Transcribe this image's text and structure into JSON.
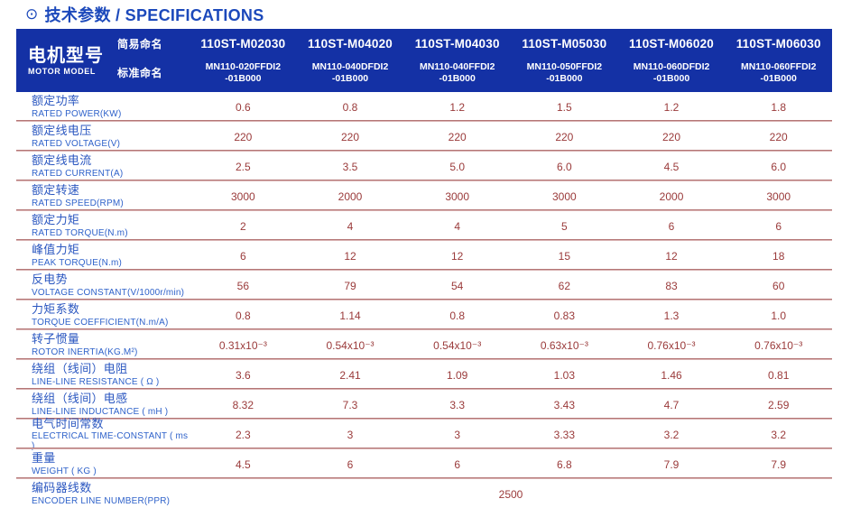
{
  "title": {
    "icon": "⊙",
    "text": "技术参数 / SPECIFICATIONS"
  },
  "colors": {
    "header_bg": "#1431a5",
    "title_blue": "#1c49bb",
    "label_blue": "#2b57c0",
    "value_red": "#9a3a3a",
    "separator_dark": "#a25858",
    "separator_light": "#ebd0d0"
  },
  "table": {
    "model": {
      "zh": "电机型号",
      "en": "MOTOR MODEL"
    },
    "naming": {
      "simple": "简易命名",
      "standard": "标准命名"
    },
    "columns": [
      {
        "simple": "110ST-M02030",
        "standard": "MN110-020FFDI2\n-01B000"
      },
      {
        "simple": "110ST-M04020",
        "standard": "MN110-040DFDI2\n-01B000"
      },
      {
        "simple": "110ST-M04030",
        "standard": "MN110-040FFDI2\n-01B000"
      },
      {
        "simple": "110ST-M05030",
        "standard": "MN110-050FFDI2\n-01B000"
      },
      {
        "simple": "110ST-M06020",
        "standard": "MN110-060DFDI2\n-01B000"
      },
      {
        "simple": "110ST-M06030",
        "standard": "MN110-060FFDI2\n-01B000"
      }
    ],
    "rows": [
      {
        "zh": "额定功率",
        "en": "RATED POWER(KW)",
        "values": [
          "0.6",
          "0.8",
          "1.2",
          "1.5",
          "1.2",
          "1.8"
        ]
      },
      {
        "zh": "额定线电压",
        "en": "RATED VOLTAGE(V)",
        "values": [
          "220",
          "220",
          "220",
          "220",
          "220",
          "220"
        ]
      },
      {
        "zh": "额定线电流",
        "en": "RATED CURRENT(A)",
        "values": [
          "2.5",
          "3.5",
          "5.0",
          "6.0",
          "4.5",
          "6.0"
        ]
      },
      {
        "zh": "额定转速",
        "en": "RATED SPEED(RPM)",
        "values": [
          "3000",
          "2000",
          "3000",
          "3000",
          "2000",
          "3000"
        ]
      },
      {
        "zh": "额定力矩",
        "en": "RATED TORQUE(N.m)",
        "values": [
          "2",
          "4",
          "4",
          "5",
          "6",
          "6"
        ]
      },
      {
        "zh": "峰值力矩",
        "en": "PEAK TORQUE(N.m)",
        "values": [
          "6",
          "12",
          "12",
          "15",
          "12",
          "18"
        ]
      },
      {
        "zh": "反电势",
        "en": "VOLTAGE CONSTANT(V/1000r/min)",
        "values": [
          "56",
          "79",
          "54",
          "62",
          "83",
          "60"
        ]
      },
      {
        "zh": "力矩系数",
        "en": "TORQUE COEFFICIENT(N.m/A)",
        "values": [
          "0.8",
          "1.14",
          "0.8",
          "0.83",
          "1.3",
          "1.0"
        ]
      },
      {
        "zh": "转子惯量",
        "en": "ROTOR INERTIA(KG.M²)",
        "values": [
          "0.31x10⁻³",
          "0.54x10⁻³",
          "0.54x10⁻³",
          "0.63x10⁻³",
          "0.76x10⁻³",
          "0.76x10⁻³"
        ]
      },
      {
        "zh": "绕组（线间）电阻",
        "en": "LINE-LINE RESISTANCE ( Ω )",
        "values": [
          "3.6",
          "2.41",
          "1.09",
          "1.03",
          "1.46",
          "0.81"
        ]
      },
      {
        "zh": "绕组（线间）电感",
        "en": "LINE-LINE INDUCTANCE ( mH )",
        "values": [
          "8.32",
          "7.3",
          "3.3",
          "3.43",
          "4.7",
          "2.59"
        ]
      },
      {
        "zh": "电气时间常数",
        "en": "ELECTRICAL TIME-CONSTANT ( ms )",
        "values": [
          "2.3",
          "3",
          "3",
          "3.33",
          "3.2",
          "3.2"
        ]
      },
      {
        "zh": "重量",
        "en": "WEIGHT ( KG )",
        "values": [
          "4.5",
          "6",
          "6",
          "6.8",
          "7.9",
          "7.9"
        ]
      }
    ],
    "encoder_row": {
      "zh": "编码器线数",
      "en": "ENCODER LINE NUMBER(PPR)",
      "value": "2500"
    }
  }
}
